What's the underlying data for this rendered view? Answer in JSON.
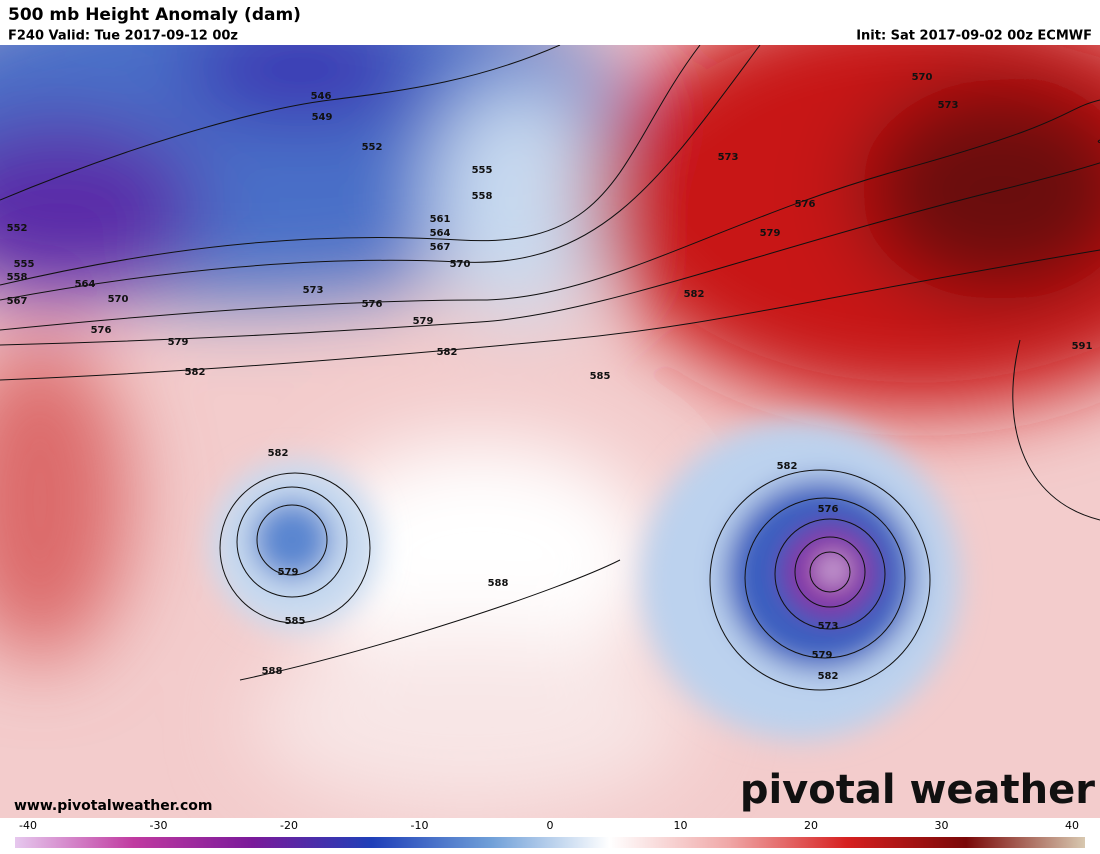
{
  "header": {
    "title": "500 mb Height Anomaly (dam)",
    "valid": "F240 Valid: Tue 2017-09-12 00z",
    "init": "Init: Sat 2017-09-02 00z ECMWF"
  },
  "footer": {
    "url": "www.pivotalweather.com",
    "logo": "pivotal weather"
  },
  "colorbar": {
    "lim": [
      -40,
      40
    ],
    "ticks": [
      -40,
      -30,
      -20,
      -10,
      0,
      10,
      20,
      30,
      40
    ],
    "colors": [
      "#e6c8ee",
      "#c03aa0",
      "#7a1a9a",
      "#1f3fb8",
      "#6f9fd8",
      "#ffffff",
      "#f0a8a8",
      "#d62020",
      "#7a0808",
      "#d8c8b0"
    ]
  },
  "contour_labels": [
    "546",
    "549",
    "552",
    "555",
    "558",
    "561",
    "564",
    "567",
    "570",
    "573",
    "576",
    "579",
    "582",
    "585",
    "588",
    "552",
    "555",
    "558",
    "567",
    "564",
    "570",
    "576",
    "579",
    "582",
    "570",
    "573",
    "573",
    "576",
    "579",
    "582",
    "591",
    "582",
    "579",
    "585",
    "588",
    "582",
    "576",
    "573",
    "579",
    "582"
  ]
}
